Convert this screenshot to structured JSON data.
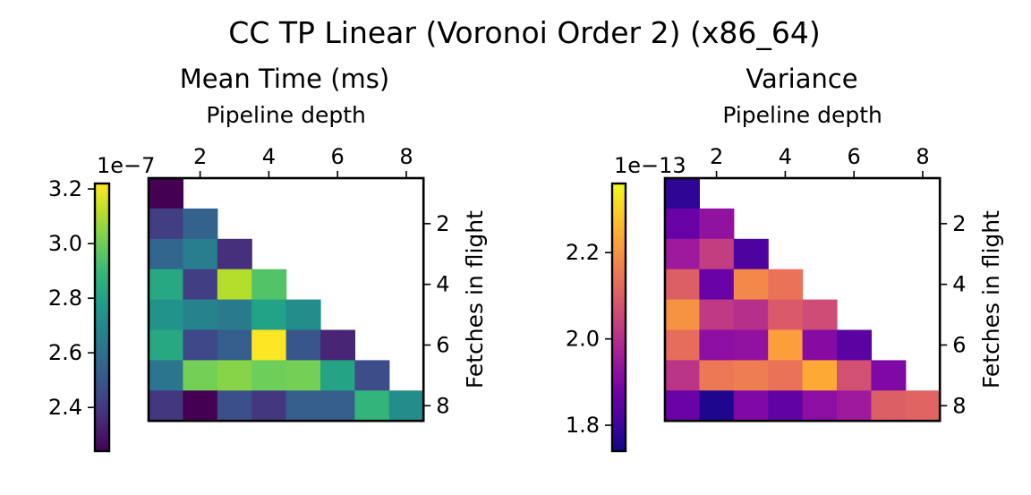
{
  "figure": {
    "title": "CC TP Linear (Voronoi Order 2) (x86_64)"
  },
  "chart_data": [
    {
      "type": "heatmap",
      "title": "Mean Time (ms)",
      "xlabel": "Pipeline depth",
      "ylabel": "Fetches in flight",
      "x": [
        1,
        2,
        3,
        4,
        5,
        6,
        7,
        8
      ],
      "y": [
        1,
        2,
        3,
        4,
        5,
        6,
        7,
        8
      ],
      "x_ticks": [
        2,
        4,
        6,
        8
      ],
      "y_ticks": [
        2,
        4,
        6,
        8
      ],
      "colormap": "viridis",
      "colorbar": {
        "range": [
          2.24,
          3.22
        ],
        "ticks": [
          2.4,
          2.6,
          2.8,
          3.0,
          3.2
        ],
        "tick_labels": [
          "2.4",
          "2.6",
          "2.8",
          "3.0",
          "3.2"
        ],
        "scale_label": "1e−7"
      },
      "values": [
        [
          2.24,
          null,
          null,
          null,
          null,
          null,
          null,
          null
        ],
        [
          2.42,
          2.55,
          null,
          null,
          null,
          null,
          null,
          null
        ],
        [
          2.56,
          2.66,
          2.37,
          null,
          null,
          null,
          null,
          null
        ],
        [
          2.83,
          2.42,
          3.11,
          2.95,
          null,
          null,
          null,
          null
        ],
        [
          2.74,
          2.68,
          2.64,
          2.8,
          2.72,
          null,
          null,
          null
        ],
        [
          2.83,
          2.45,
          2.53,
          3.22,
          2.5,
          2.34,
          null,
          null
        ],
        [
          2.62,
          3.01,
          3.04,
          3.0,
          3.01,
          2.81,
          2.47,
          null
        ],
        [
          2.4,
          2.24,
          2.48,
          2.4,
          2.53,
          2.53,
          2.88,
          2.72
        ]
      ]
    },
    {
      "type": "heatmap",
      "title": "Variance",
      "xlabel": "Pipeline depth",
      "ylabel": "Fetches in flight",
      "x": [
        1,
        2,
        3,
        4,
        5,
        6,
        7,
        8
      ],
      "y": [
        1,
        2,
        3,
        4,
        5,
        6,
        7,
        8
      ],
      "x_ticks": [
        2,
        4,
        6,
        8
      ],
      "y_ticks": [
        2,
        4,
        6,
        8
      ],
      "colormap": "plasma",
      "colorbar": {
        "range": [
          1.74,
          2.36
        ],
        "ticks": [
          1.8,
          2.0,
          2.2
        ],
        "tick_labels": [
          "1.8",
          "2.0",
          "2.2"
        ],
        "scale_label": "1e−13"
      },
      "values": [
        [
          1.78,
          null,
          null,
          null,
          null,
          null,
          null,
          null
        ],
        [
          1.86,
          1.93,
          null,
          null,
          null,
          null,
          null,
          null
        ],
        [
          1.95,
          2.03,
          1.82,
          null,
          null,
          null,
          null,
          null
        ],
        [
          2.1,
          1.86,
          2.18,
          2.14,
          null,
          null,
          null,
          null
        ],
        [
          2.2,
          2.02,
          2.0,
          2.09,
          2.06,
          null,
          null,
          null
        ],
        [
          2.13,
          1.92,
          1.93,
          2.22,
          1.91,
          1.84,
          null,
          null
        ],
        [
          2.01,
          2.15,
          2.16,
          2.14,
          2.24,
          2.07,
          1.9,
          null
        ],
        [
          1.86,
          1.76,
          1.9,
          1.85,
          1.92,
          1.95,
          2.1,
          2.11
        ]
      ]
    }
  ]
}
